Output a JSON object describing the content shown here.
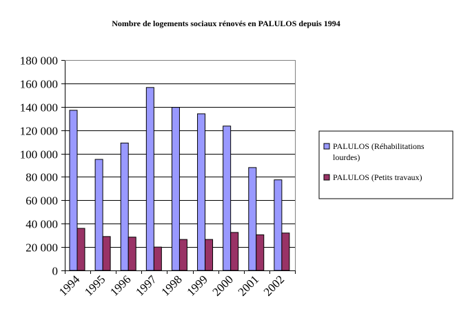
{
  "chart_data": {
    "type": "bar",
    "title": "Nombre de logements sociaux rénovés en PALULOS depuis 1994",
    "xlabel": "",
    "ylabel": "",
    "categories": [
      "1994",
      "1995",
      "1996",
      "1997",
      "1998",
      "1999",
      "2000",
      "2001",
      "2002"
    ],
    "series": [
      {
        "name": "PALULOS (Réhabilitations lourdes)",
        "name_lines": [
          "PALULOS (Réhabilitations",
          "lourdes)"
        ],
        "color": "#9999FF",
        "values": [
          137000,
          95000,
          109000,
          156500,
          139500,
          134000,
          123500,
          88000,
          77500
        ]
      },
      {
        "name": "PALULOS (Petits travaux)",
        "name_lines": [
          "PALULOS (Petits travaux)"
        ],
        "color": "#993366",
        "values": [
          36000,
          29000,
          28500,
          20000,
          26500,
          26500,
          32500,
          30500,
          32000
        ]
      }
    ],
    "ylim": [
      0,
      180000
    ],
    "yticks": [
      "0",
      "20 000",
      "40 000",
      "60 000",
      "80 000",
      "100 000",
      "120 000",
      "140 000",
      "160 000",
      "180 000"
    ],
    "grid": true,
    "legend_position": "right"
  }
}
